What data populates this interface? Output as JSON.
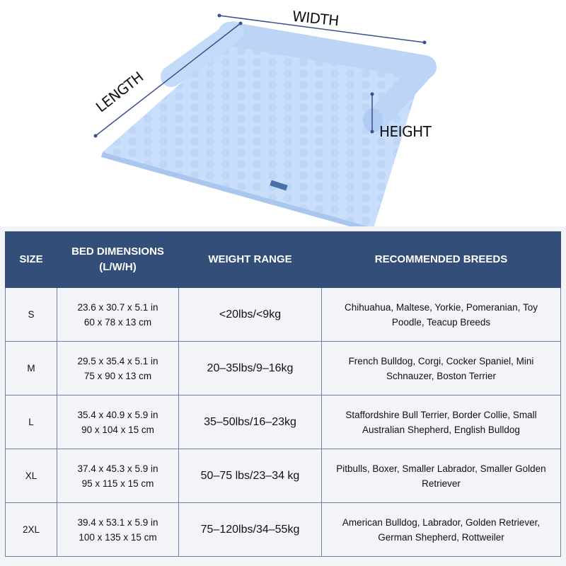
{
  "diagram": {
    "width_label": "WIDTH",
    "length_label": "LENGTH",
    "height_label": "HEIGHT",
    "bed_color": "#c9defa",
    "line_color": "#3b4f8f"
  },
  "table": {
    "header_color": "#344e7a",
    "headers": [
      "SIZE",
      "BED DIMENSIONS",
      "(L/W/H)",
      "WEIGHT RANGE",
      "RECOMMENDED BREEDS"
    ],
    "rows": [
      {
        "size": "S",
        "dim_in": "23.6 x 30.7 x 5.1 in",
        "dim_cm": "60 x 78 x 13 cm",
        "weight": "<20lbs/<9kg",
        "breeds": "Chihuahua, Maltese, Yorkie, Pomeranian, Toy Poodle, Teacup Breeds"
      },
      {
        "size": "M",
        "dim_in": "29.5 x 35.4 x 5.1 in",
        "dim_cm": "75 x 90 x 13 cm",
        "weight": "20–35lbs/9–16kg",
        "breeds": "French Bulldog, Corgi, Cocker Spaniel, Mini Schnauzer, Boston Terrier"
      },
      {
        "size": "L",
        "dim_in": "35.4 x 40.9 x 5.9 in",
        "dim_cm": "90 x 104 x 15 cm",
        "weight": "35–50lbs/16–23kg",
        "breeds": "Staffordshire Bull Terrier, Border Collie, Small Australian Shepherd, English Bulldog"
      },
      {
        "size": "XL",
        "dim_in": "37.4 x 45.3 x 5.9 in",
        "dim_cm": "95 x 115 x 15 cm",
        "weight": "50–75 lbs/23–34 kg",
        "breeds": "Pitbulls, Boxer, Smaller Labrador, Smaller Golden Retriever"
      },
      {
        "size": "2XL",
        "dim_in": "39.4 x 53.1 x 5.9 in",
        "dim_cm": "100 x 135 x 15 cm",
        "weight": "75–120lbs/34–55kg",
        "breeds": "American Bulldog, Labrador, Golden Retriever, German Shepherd, Rottweiler"
      }
    ]
  }
}
